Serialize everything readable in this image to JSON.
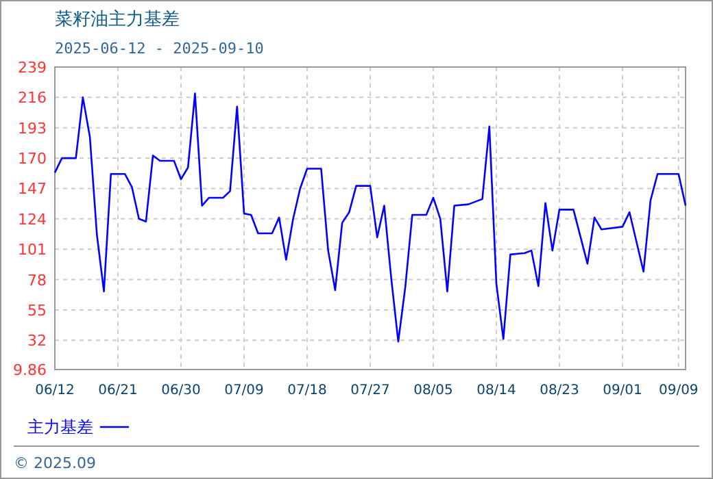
{
  "chart_data": {
    "type": "line",
    "title": "菜籽油主力基差",
    "subtitle": "2025-06-12 - 2025-09-10",
    "x": [
      "2025-06-12",
      "2025-06-13",
      "2025-06-15",
      "2025-06-16",
      "2025-06-17",
      "2025-06-18",
      "2025-06-19",
      "2025-06-20",
      "2025-06-22",
      "2025-06-23",
      "2025-06-24",
      "2025-06-25",
      "2025-06-26",
      "2025-06-27",
      "2025-06-29",
      "2025-06-30",
      "2025-07-01",
      "2025-07-02",
      "2025-07-03",
      "2025-07-04",
      "2025-07-06",
      "2025-07-07",
      "2025-07-08",
      "2025-07-09",
      "2025-07-10",
      "2025-07-11",
      "2025-07-13",
      "2025-07-14",
      "2025-07-15",
      "2025-07-16",
      "2025-07-17",
      "2025-07-18",
      "2025-07-20",
      "2025-07-21",
      "2025-07-22",
      "2025-07-23",
      "2025-07-24",
      "2025-07-25",
      "2025-07-27",
      "2025-07-28",
      "2025-07-29",
      "2025-07-30",
      "2025-07-31",
      "2025-08-01",
      "2025-08-02",
      "2025-08-04",
      "2025-08-05",
      "2025-08-06",
      "2025-08-07",
      "2025-08-08",
      "2025-08-10",
      "2025-08-12",
      "2025-08-13",
      "2025-08-14",
      "2025-08-15",
      "2025-08-16",
      "2025-08-18",
      "2025-08-19",
      "2025-08-20",
      "2025-08-21",
      "2025-08-22",
      "2025-08-23",
      "2025-08-25",
      "2025-08-27",
      "2025-08-28",
      "2025-08-29",
      "2025-09-01",
      "2025-09-02",
      "2025-09-04",
      "2025-09-05",
      "2025-09-06",
      "2025-09-09",
      "2025-09-10"
    ],
    "series": [
      {
        "name": "主力基差",
        "color": "#0000ff",
        "values": [
          159,
          170,
          170,
          216,
          186,
          112,
          69,
          158,
          158,
          148,
          124,
          122,
          172,
          168,
          168,
          154,
          163,
          219,
          134,
          140,
          140,
          145,
          209,
          128,
          127,
          113,
          113,
          125,
          93,
          124,
          147,
          162,
          162,
          100,
          70,
          121,
          129,
          149,
          149,
          110,
          134,
          79,
          31,
          72,
          127,
          127,
          140,
          124,
          69,
          134,
          135,
          139,
          194,
          75,
          33,
          97,
          98,
          100,
          73,
          136,
          100,
          131,
          131,
          90,
          125,
          116,
          118,
          129,
          84,
          138,
          158,
          158,
          134
        ]
      }
    ],
    "xlim": [
      "2025-06-12",
      "2025-09-10"
    ],
    "xticks": [
      {
        "value": "2025-06-12",
        "label": "06/12"
      },
      {
        "value": "2025-06-21",
        "label": "06/21"
      },
      {
        "value": "2025-06-30",
        "label": "06/30"
      },
      {
        "value": "2025-07-09",
        "label": "07/09"
      },
      {
        "value": "2025-07-18",
        "label": "07/18"
      },
      {
        "value": "2025-07-27",
        "label": "07/27"
      },
      {
        "value": "2025-08-05",
        "label": "08/05"
      },
      {
        "value": "2025-08-14",
        "label": "08/14"
      },
      {
        "value": "2025-08-23",
        "label": "08/23"
      },
      {
        "value": "2025-09-01",
        "label": "09/01"
      },
      {
        "value": "2025-09-09",
        "label": "09/09"
      }
    ],
    "ylim": [
      9.86,
      239
    ],
    "yticks": [
      9.86,
      32,
      55,
      78,
      101,
      124,
      147,
      170,
      193,
      216,
      239
    ],
    "grid": true,
    "legend": "bottom left",
    "marker": "none",
    "line_style": "solid",
    "annotations": [
      "© 2025.09"
    ]
  }
}
